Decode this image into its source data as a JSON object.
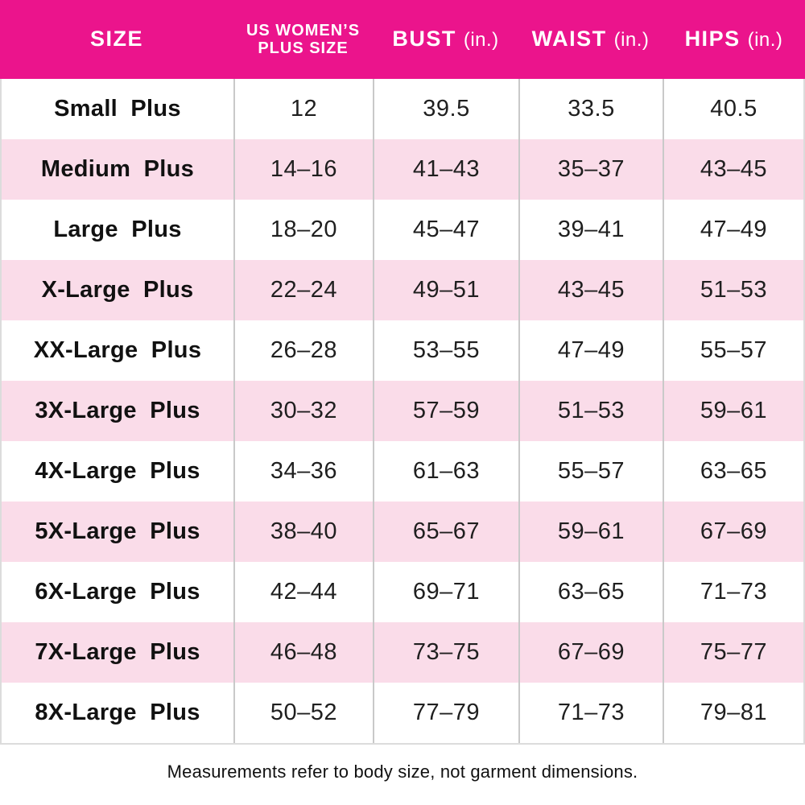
{
  "colors": {
    "header_bg": "#EB148C",
    "header_text": "#FFFFFF",
    "row_bg": "#FFFFFF",
    "row_alt_bg": "#FADCE9",
    "grid_line": "#C9C9C9",
    "outer_border": "#DCDCDC",
    "body_text": "#1A1A1A"
  },
  "header": {
    "size": "SIZE",
    "plus_size_line1": "US WOMEN’S",
    "plus_size_line2": "PLUS SIZE",
    "bust": "BUST",
    "waist": "WAIST",
    "hips": "HIPS",
    "unit": "(in.)"
  },
  "rows": [
    {
      "size": "Small Plus",
      "us_plus_size": "12",
      "bust": "39.5",
      "waist": "33.5",
      "hips": "40.5"
    },
    {
      "size": "Medium Plus",
      "us_plus_size": "14–16",
      "bust": "41–43",
      "waist": "35–37",
      "hips": "43–45"
    },
    {
      "size": "Large Plus",
      "us_plus_size": "18–20",
      "bust": "45–47",
      "waist": "39–41",
      "hips": "47–49"
    },
    {
      "size": "X-Large Plus",
      "us_plus_size": "22–24",
      "bust": "49–51",
      "waist": "43–45",
      "hips": "51–53"
    },
    {
      "size": "XX-Large Plus",
      "us_plus_size": "26–28",
      "bust": "53–55",
      "waist": "47–49",
      "hips": "55–57"
    },
    {
      "size": "3X-Large Plus",
      "us_plus_size": "30–32",
      "bust": "57–59",
      "waist": "51–53",
      "hips": "59–61"
    },
    {
      "size": "4X-Large Plus",
      "us_plus_size": "34–36",
      "bust": "61–63",
      "waist": "55–57",
      "hips": "63–65"
    },
    {
      "size": "5X-Large Plus",
      "us_plus_size": "38–40",
      "bust": "65–67",
      "waist": "59–61",
      "hips": "67–69"
    },
    {
      "size": "6X-Large Plus",
      "us_plus_size": "42–44",
      "bust": "69–71",
      "waist": "63–65",
      "hips": "71–73"
    },
    {
      "size": "7X-Large Plus",
      "us_plus_size": "46–48",
      "bust": "73–75",
      "waist": "67–69",
      "hips": "75–77"
    },
    {
      "size": "8X-Large Plus",
      "us_plus_size": "50–52",
      "bust": "77–79",
      "waist": "71–73",
      "hips": "79–81"
    }
  ],
  "footnote": "Measurements refer to body size, not garment dimensions.",
  "chart_data": {
    "type": "table",
    "title": "US Women's Plus Size Chart",
    "columns": [
      "SIZE",
      "US WOMEN'S PLUS SIZE",
      "BUST (in.)",
      "WAIST (in.)",
      "HIPS (in.)"
    ],
    "rows": [
      [
        "Small Plus",
        "12",
        "39.5",
        "33.5",
        "40.5"
      ],
      [
        "Medium Plus",
        "14–16",
        "41–43",
        "35–37",
        "43–45"
      ],
      [
        "Large Plus",
        "18–20",
        "45–47",
        "39–41",
        "47–49"
      ],
      [
        "X-Large Plus",
        "22–24",
        "49–51",
        "43–45",
        "51–53"
      ],
      [
        "XX-Large Plus",
        "26–28",
        "53–55",
        "47–49",
        "55–57"
      ],
      [
        "3X-Large Plus",
        "30–32",
        "57–59",
        "51–53",
        "59–61"
      ],
      [
        "4X-Large Plus",
        "34–36",
        "61–63",
        "55–57",
        "63–65"
      ],
      [
        "5X-Large Plus",
        "38–40",
        "65–67",
        "59–61",
        "67–69"
      ],
      [
        "6X-Large Plus",
        "42–44",
        "69–71",
        "63–65",
        "71–73"
      ],
      [
        "7X-Large Plus",
        "46–48",
        "73–75",
        "67–69",
        "75–77"
      ],
      [
        "8X-Large Plus",
        "50–52",
        "77–79",
        "71–73",
        "79–81"
      ]
    ],
    "notes": "Measurements refer to body size, not garment dimensions.",
    "units": "inches",
    "row_striping": "alternating white / light pink",
    "header_style": "magenta background, white bold text"
  }
}
